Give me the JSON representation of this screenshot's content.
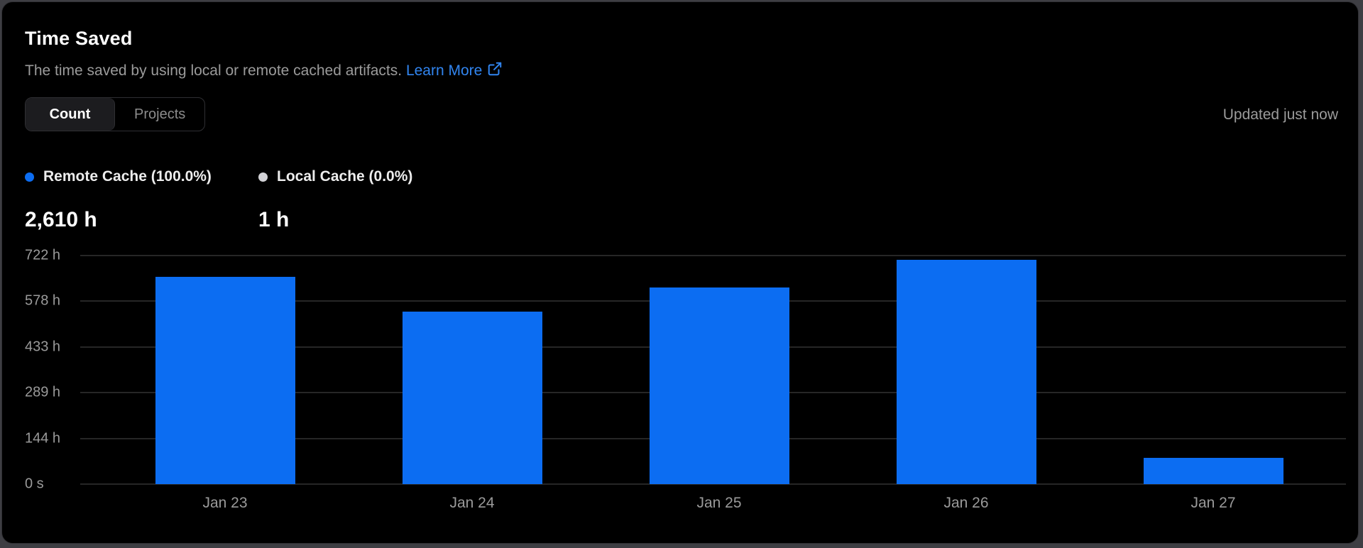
{
  "card": {
    "title": "Time Saved",
    "subtitle": "The time saved by using local or remote cached artifacts.",
    "link_label": "Learn More",
    "updated": "Updated just now",
    "tabs": [
      {
        "label": "Count",
        "active": true
      },
      {
        "label": "Projects",
        "active": false
      }
    ]
  },
  "legend": [
    {
      "label": "Remote Cache (100.0%)",
      "value": "2,610 h",
      "color": "#0c6df2"
    },
    {
      "label": "Local Cache (0.0%)",
      "value": "1 h",
      "color": "#d2d2d6"
    }
  ],
  "chart_data": {
    "type": "bar",
    "categories": [
      "Jan 23",
      "Jan 24",
      "Jan 25",
      "Jan 26",
      "Jan 27"
    ],
    "series": [
      {
        "name": "Remote Cache",
        "color": "#0c6df2",
        "values": [
          654,
          544,
          621,
          708,
          82
        ]
      }
    ],
    "value_unit": "hours",
    "title": "Time Saved",
    "xlabel": "",
    "ylabel": "",
    "ymax": 722,
    "y_ticks": [
      {
        "label": "722 h",
        "value": 722
      },
      {
        "label": "578 h",
        "value": 578
      },
      {
        "label": "433 h",
        "value": 433
      },
      {
        "label": "289 h",
        "value": 289
      },
      {
        "label": "144 h",
        "value": 144
      },
      {
        "label": "0 s",
        "value": 0
      }
    ],
    "grid": "horizontal",
    "legend_position": "top-left",
    "totals": {
      "remote_cache": "2,610 h",
      "local_cache": "1 h"
    }
  },
  "colors": {
    "card_background": "#000000",
    "card_border": "#313135",
    "bar_blue": "#0c6df2",
    "link_blue": "#3185f0",
    "muted_text": "#9b9b9b",
    "gridline": "#262626"
  }
}
